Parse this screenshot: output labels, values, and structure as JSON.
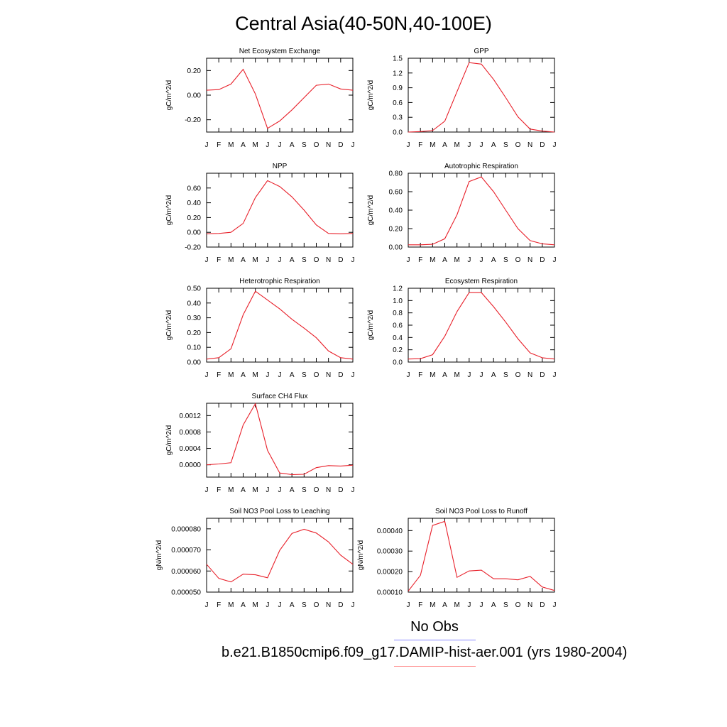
{
  "title": "Central Asia(40-50N,40-100E)",
  "colors": {
    "series": "#e8202a",
    "obs_line": "#8888ff",
    "case_line": "#ff8888",
    "axes": "#000000"
  },
  "legend": {
    "obs_label": "No Obs",
    "case_label": "b.e21.B1850cmip6.f09_g17.DAMIP-hist-aer.001 (yrs 1980-2004)"
  },
  "chart_data": [
    {
      "type": "line",
      "title": "Net Ecosystem Exchange",
      "ylabel": "gC/m^2/d",
      "categories": [
        "J",
        "F",
        "M",
        "A",
        "M",
        "J",
        "J",
        "A",
        "S",
        "O",
        "N",
        "D",
        "J"
      ],
      "values": [
        0.04,
        0.045,
        0.09,
        0.21,
        0.01,
        -0.27,
        -0.21,
        -0.12,
        -0.02,
        0.08,
        0.09,
        0.05,
        0.04
      ],
      "ylim": [
        -0.3,
        0.3
      ],
      "yticks": [
        -0.2,
        0.0,
        0.2
      ],
      "yticklabels": [
        "-0.20",
        "0.00",
        "0.20"
      ]
    },
    {
      "type": "line",
      "title": "GPP",
      "ylabel": "gC/m^2/d",
      "categories": [
        "J",
        "F",
        "M",
        "A",
        "M",
        "J",
        "J",
        "A",
        "S",
        "O",
        "N",
        "D",
        "J"
      ],
      "values": [
        0.0,
        0.01,
        0.03,
        0.22,
        0.82,
        1.41,
        1.38,
        1.07,
        0.7,
        0.31,
        0.06,
        0.02,
        0.0
      ],
      "ylim": [
        0,
        1.5
      ],
      "yticks": [
        0,
        0.3,
        0.6,
        0.9,
        1.2,
        1.5
      ],
      "yticklabels": [
        "0.0",
        "0.3",
        "0.6",
        "0.9",
        "1.2",
        "1.5"
      ]
    },
    {
      "type": "line",
      "title": "NPP",
      "ylabel": "gC/m^2/d",
      "categories": [
        "J",
        "F",
        "M",
        "A",
        "M",
        "J",
        "J",
        "A",
        "S",
        "O",
        "N",
        "D",
        "J"
      ],
      "values": [
        -0.02,
        -0.015,
        0.0,
        0.12,
        0.47,
        0.7,
        0.62,
        0.48,
        0.3,
        0.1,
        -0.015,
        -0.02,
        -0.015
      ],
      "ylim": [
        -0.2,
        0.8
      ],
      "yticks": [
        -0.2,
        0.0,
        0.2,
        0.4,
        0.6
      ],
      "yticklabels": [
        "-0.20",
        "0.00",
        "0.20",
        "0.40",
        "0.60"
      ]
    },
    {
      "type": "line",
      "title": "Autotrophic Respiration",
      "ylabel": "gC/m^2/d",
      "categories": [
        "J",
        "F",
        "M",
        "A",
        "M",
        "J",
        "J",
        "A",
        "S",
        "O",
        "N",
        "D",
        "J"
      ],
      "values": [
        0.025,
        0.025,
        0.03,
        0.09,
        0.35,
        0.71,
        0.76,
        0.6,
        0.4,
        0.2,
        0.07,
        0.035,
        0.025
      ],
      "ylim": [
        0,
        0.8
      ],
      "yticks": [
        0,
        0.2,
        0.4,
        0.6,
        0.8
      ],
      "yticklabels": [
        "0.00",
        "0.20",
        "0.40",
        "0.60",
        "0.80"
      ]
    },
    {
      "type": "line",
      "title": "Heterotrophic Respiration",
      "ylabel": "gC/m^2/d",
      "categories": [
        "J",
        "F",
        "M",
        "A",
        "M",
        "J",
        "J",
        "A",
        "S",
        "O",
        "N",
        "D",
        "J"
      ],
      "values": [
        0.02,
        0.03,
        0.09,
        0.32,
        0.48,
        0.42,
        0.36,
        0.29,
        0.23,
        0.165,
        0.075,
        0.03,
        0.02
      ],
      "ylim": [
        0,
        0.5
      ],
      "yticks": [
        0,
        0.1,
        0.2,
        0.3,
        0.4,
        0.5
      ],
      "yticklabels": [
        "0.00",
        "0.10",
        "0.20",
        "0.30",
        "0.40",
        "0.50"
      ]
    },
    {
      "type": "line",
      "title": "Ecosystem Respiration",
      "ylabel": "gC/m^2/d",
      "categories": [
        "J",
        "F",
        "M",
        "A",
        "M",
        "J",
        "J",
        "A",
        "S",
        "O",
        "N",
        "D",
        "J"
      ],
      "values": [
        0.05,
        0.055,
        0.12,
        0.42,
        0.82,
        1.13,
        1.13,
        0.9,
        0.65,
        0.38,
        0.15,
        0.07,
        0.05
      ],
      "ylim": [
        0,
        1.2
      ],
      "yticks": [
        0,
        0.2,
        0.4,
        0.6,
        0.8,
        1.0,
        1.2
      ],
      "yticklabels": [
        "0.0",
        "0.2",
        "0.4",
        "0.6",
        "0.8",
        "1.0",
        "1.2"
      ]
    },
    {
      "type": "line",
      "title": "Surface CH4 Flux",
      "ylabel": "gC/m^2/d",
      "categories": [
        "J",
        "F",
        "M",
        "A",
        "M",
        "J",
        "J",
        "A",
        "S",
        "O",
        "N",
        "D",
        "J"
      ],
      "values": [
        0.0,
        2e-05,
        5e-05,
        0.00097,
        0.00149,
        0.00035,
        -0.0002,
        -0.00024,
        -0.00023,
        -7e-05,
        -2e-05,
        -3e-05,
        -1e-05
      ],
      "ylim": [
        -0.0003,
        0.0015
      ],
      "yticks": [
        0.0,
        0.0004,
        0.0008,
        0.0012
      ],
      "yticklabels": [
        "0.0000",
        "0.0004",
        "0.0008",
        "0.0012"
      ]
    },
    null,
    {
      "type": "line",
      "title": "Soil NO3 Pool Loss to Leaching",
      "ylabel": "gN/m^2/d",
      "categories": [
        "J",
        "F",
        "M",
        "A",
        "M",
        "J",
        "J",
        "A",
        "S",
        "O",
        "N",
        "D",
        "J"
      ],
      "values": [
        6.32e-05,
        5.65e-05,
        5.48e-05,
        5.85e-05,
        5.82e-05,
        5.68e-05,
        6.98e-05,
        7.78e-05,
        7.98e-05,
        7.8e-05,
        7.38e-05,
        6.75e-05,
        6.32e-05
      ],
      "ylim": [
        5e-05,
        8.5e-05
      ],
      "yticks": [
        5e-05,
        6e-05,
        7e-05,
        8e-05
      ],
      "yticklabels": [
        "0.000050",
        "0.000060",
        "0.000070",
        "0.000080"
      ]
    },
    {
      "type": "line",
      "title": "Soil NO3 Pool Loss to Runoff",
      "ylabel": "gN/m^2/d",
      "categories": [
        "J",
        "F",
        "M",
        "A",
        "M",
        "J",
        "J",
        "A",
        "S",
        "O",
        "N",
        "D",
        "J"
      ],
      "values": [
        0.000105,
        0.000182,
        0.000425,
        0.000445,
        0.000172,
        0.000203,
        0.000207,
        0.000165,
        0.000165,
        0.00016,
        0.000177,
        0.000125,
        0.000108
      ],
      "ylim": [
        0.0001,
        0.00046
      ],
      "yticks": [
        0.0001,
        0.0002,
        0.0003,
        0.0004
      ],
      "yticklabels": [
        "0.00010",
        "0.00020",
        "0.00030",
        "0.00040"
      ]
    }
  ]
}
